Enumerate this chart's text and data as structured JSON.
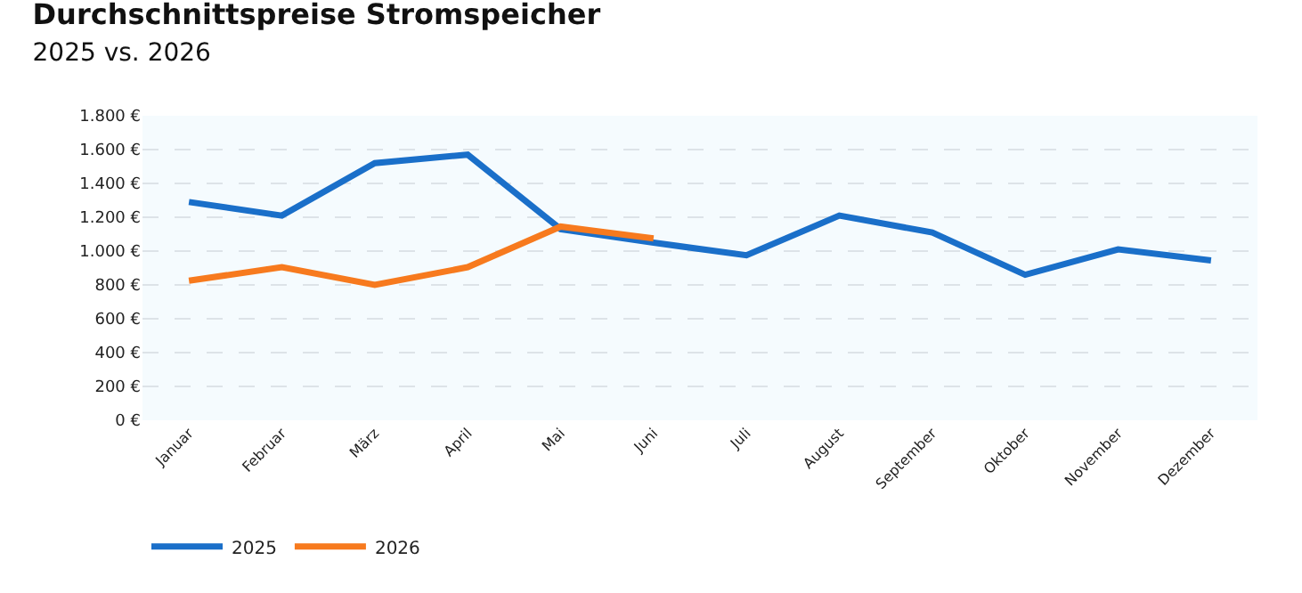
{
  "chart_data": {
    "type": "line",
    "title": "Durchschnittspreise Stromspeicher",
    "subtitle": "2025 vs. 2026",
    "categories": [
      "Januar",
      "Februar",
      "März",
      "April",
      "Mai",
      "Juni",
      "Juli",
      "August",
      "September",
      "Oktober",
      "November",
      "Dezember"
    ],
    "series": [
      {
        "name": "2025",
        "color": "#1a6fc9",
        "values": [
          1290,
          1210,
          1520,
          1570,
          1130,
          1050,
          975,
          1210,
          1110,
          860,
          1010,
          945
        ]
      },
      {
        "name": "2026",
        "color": "#f77a1e",
        "values": [
          825,
          905,
          800,
          905,
          1145,
          1075,
          null,
          null,
          null,
          null,
          null,
          null
        ]
      }
    ],
    "ylim": [
      0,
      1800
    ],
    "yticks": [
      {
        "value": 0,
        "label": "0 €"
      },
      {
        "value": 200,
        "label": "200 €"
      },
      {
        "value": 400,
        "label": "400 €"
      },
      {
        "value": 600,
        "label": "600 €"
      },
      {
        "value": 800,
        "label": "800 €"
      },
      {
        "value": 1000,
        "label": "1.000 €"
      },
      {
        "value": 1200,
        "label": "1.200 €"
      },
      {
        "value": 1400,
        "label": "1.400 €"
      },
      {
        "value": 1600,
        "label": "1.600 €"
      },
      {
        "value": 1800,
        "label": "1.800 €"
      }
    ],
    "grid": "y",
    "legend": "bottom left",
    "marker": "none",
    "line_style": "solid"
  }
}
